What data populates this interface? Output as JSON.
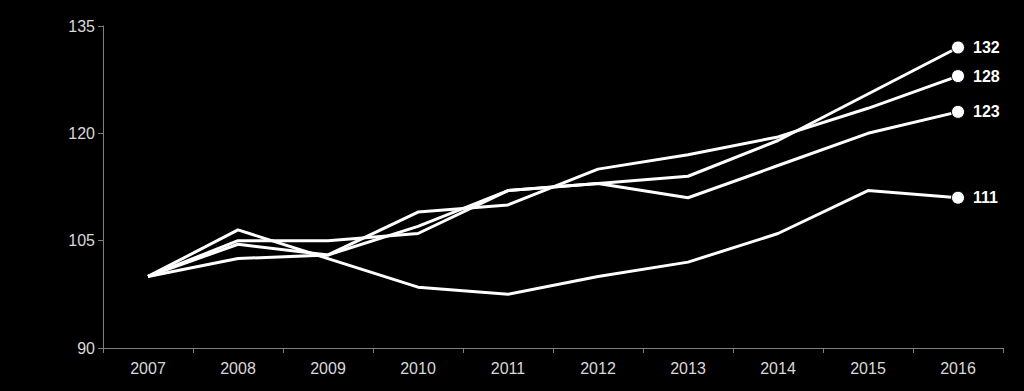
{
  "chart_data": {
    "type": "line",
    "categories": [
      "2007",
      "2008",
      "2009",
      "2010",
      "2011",
      "2012",
      "2013",
      "2014",
      "2015",
      "2016"
    ],
    "series": [
      {
        "color": "#ffffff",
        "values": [
          100,
          104.5,
          103,
          107,
          112,
          113,
          114,
          119,
          125.5,
          132
        ]
      },
      {
        "color": "#ffffff",
        "values": [
          100,
          102.5,
          103,
          109,
          110,
          115,
          117,
          119.5,
          123.5,
          128
        ]
      },
      {
        "color": "#ffffff",
        "values": [
          100,
          105,
          105,
          106,
          112,
          113,
          111,
          115.5,
          120,
          123
        ]
      },
      {
        "color": "#ffffff",
        "values": [
          100,
          106.5,
          102.5,
          98.5,
          97.5,
          100,
          102,
          106,
          112,
          111
        ]
      }
    ],
    "ylim": [
      90,
      135
    ],
    "yticks": [
      90,
      105,
      120,
      135
    ],
    "grid": false,
    "data_labels": true,
    "marker": "circle"
  }
}
